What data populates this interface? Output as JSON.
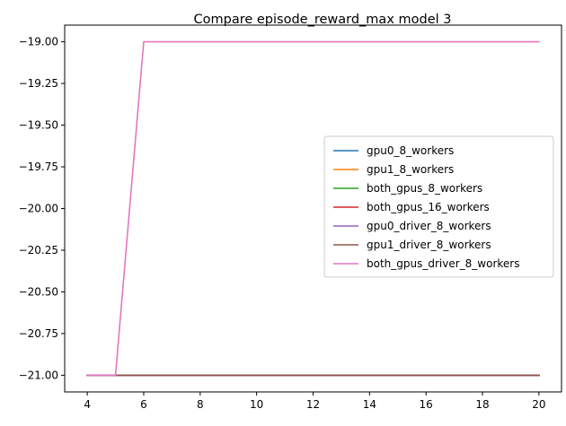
{
  "chart_data": {
    "type": "line",
    "title": "Compare episode_reward_max model 3",
    "xlabel": "",
    "ylabel": "",
    "xlim": [
      3.2,
      20.8
    ],
    "ylim": [
      -21.1,
      -18.9
    ],
    "xticks": [
      4,
      6,
      8,
      10,
      12,
      14,
      16,
      18,
      20
    ],
    "yticks": [
      -19.0,
      -19.25,
      -19.5,
      -19.75,
      -20.0,
      -20.25,
      -20.5,
      -20.75,
      -21.0
    ],
    "ytick_labels": [
      "−19.00",
      "−19.25",
      "−19.50",
      "−19.75",
      "−20.00",
      "−20.25",
      "−20.50",
      "−20.75",
      "−21.00"
    ],
    "grid": false,
    "legend_position": "center-right",
    "series": [
      {
        "name": "gpu0_8_workers",
        "color": "#1f77b4",
        "x": [
          4,
          5,
          6,
          7,
          8,
          9,
          10,
          11,
          12,
          13,
          14,
          15,
          16,
          17,
          18,
          19,
          20
        ],
        "y": [
          -21,
          -21,
          -21,
          -21,
          -21,
          -21,
          -21,
          -21,
          -21,
          -21,
          -21,
          -21,
          -21,
          -21,
          -21,
          -21,
          -21
        ]
      },
      {
        "name": "gpu1_8_workers",
        "color": "#ff7f0e",
        "x": [
          4,
          5,
          6,
          7,
          8,
          9,
          10,
          11,
          12,
          13,
          14,
          15,
          16,
          17,
          18,
          19,
          20
        ],
        "y": [
          -21,
          -21,
          -21,
          -21,
          -21,
          -21,
          -21,
          -21,
          -21,
          -21,
          -21,
          -21,
          -21,
          -21,
          -21,
          -21,
          -21
        ]
      },
      {
        "name": "both_gpus_8_workers",
        "color": "#2ca02c",
        "x": [
          4,
          5,
          6,
          7,
          8,
          9,
          10,
          11,
          12,
          13,
          14,
          15,
          16,
          17,
          18,
          19,
          20
        ],
        "y": [
          -21,
          -21,
          -21,
          -21,
          -21,
          -21,
          -21,
          -21,
          -21,
          -21,
          -21,
          -21,
          -21,
          -21,
          -21,
          -21,
          -21
        ]
      },
      {
        "name": "both_gpus_16_workers",
        "color": "#d62728",
        "x": [
          4,
          5,
          6,
          7,
          8,
          9,
          10,
          11,
          12,
          13,
          14,
          15,
          16,
          17,
          18,
          19,
          20
        ],
        "y": [
          -21,
          -21,
          -21,
          -21,
          -21,
          -21,
          -21,
          -21,
          -21,
          -21,
          -21,
          -21,
          -21,
          -21,
          -21,
          -21,
          -21
        ]
      },
      {
        "name": "gpu0_driver_8_workers",
        "color": "#9467bd",
        "x": [
          4,
          5,
          6,
          7,
          8,
          9,
          10,
          11,
          12,
          13,
          14,
          15,
          16,
          17,
          18,
          19,
          20
        ],
        "y": [
          -21,
          -21,
          -21,
          -21,
          -21,
          -21,
          -21,
          -21,
          -21,
          -21,
          -21,
          -21,
          -21,
          -21,
          -21,
          -21,
          -21
        ]
      },
      {
        "name": "gpu1_driver_8_workers",
        "color": "#8c564b",
        "x": [
          4,
          5,
          6,
          7,
          8,
          9,
          10,
          11,
          12,
          13,
          14,
          15,
          16,
          17,
          18,
          19,
          20
        ],
        "y": [
          -21,
          -21,
          -21,
          -21,
          -21,
          -21,
          -21,
          -21,
          -21,
          -21,
          -21,
          -21,
          -21,
          -21,
          -21,
          -21,
          -21
        ]
      },
      {
        "name": "both_gpus_driver_8_workers",
        "color": "#e377c2",
        "x": [
          4,
          5,
          6,
          7,
          8,
          9,
          10,
          11,
          12,
          13,
          14,
          15,
          16,
          17,
          18,
          19,
          20
        ],
        "y": [
          -21,
          -21,
          -19,
          -19,
          -19,
          -19,
          -19,
          -19,
          -19,
          -19,
          -19,
          -19,
          -19,
          -19,
          -19,
          -19,
          -19
        ]
      }
    ]
  }
}
